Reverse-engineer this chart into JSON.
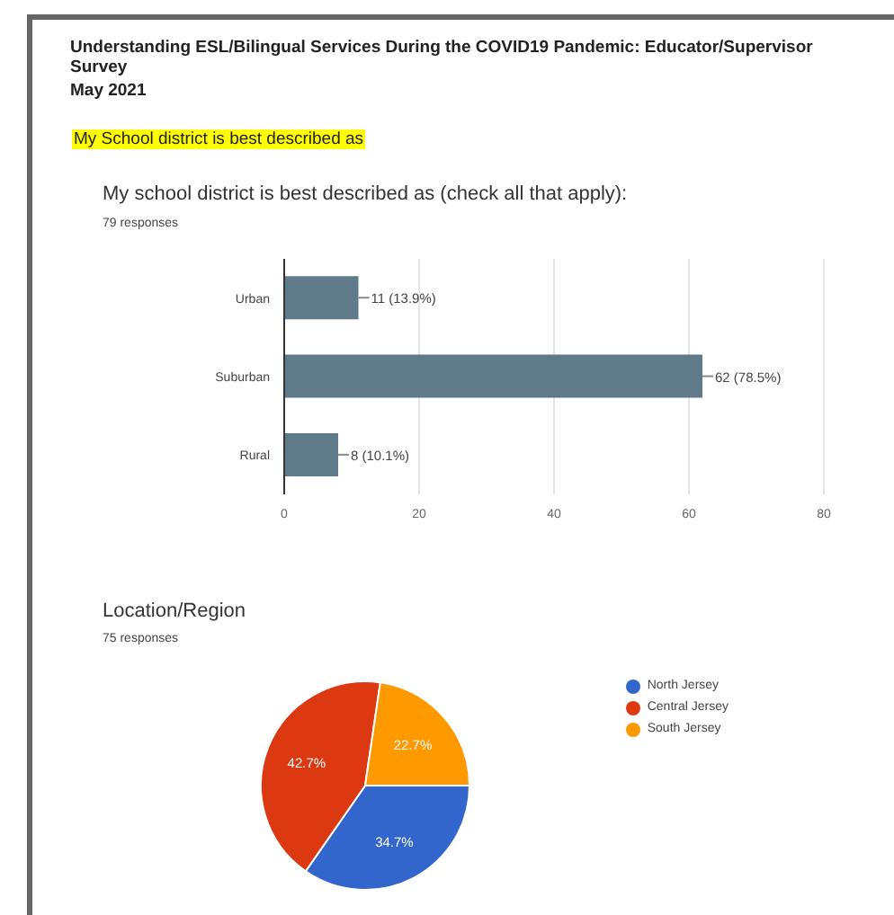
{
  "chart_data": [
    {
      "type": "bar",
      "orientation": "horizontal",
      "title": "My school district is best described as (check all that apply):",
      "subtitle": "79 responses",
      "annotations": [
        "Understanding ESL/Bilingual Services During the COVID19 Pandemic: Educator/Supervisor Survey",
        "May 2021",
        "My School district is best described as"
      ],
      "categories": [
        "Urban",
        "Suburban",
        "Rural"
      ],
      "values": [
        11,
        62,
        8
      ],
      "value_labels": [
        "11 (13.9%)",
        "62 (78.5%)",
        "8 (10.1%)"
      ],
      "color": "#5f7b89",
      "xlim": [
        0,
        80
      ],
      "xticks": [
        0,
        20,
        40,
        60,
        80
      ],
      "grid": "x"
    },
    {
      "type": "pie",
      "title": "Location/Region",
      "subtitle": "75 responses",
      "categories": [
        "North Jersey",
        "Central Jersey",
        "South Jersey"
      ],
      "values": [
        34.7,
        42.7,
        22.7
      ],
      "colors": [
        "#3366cc",
        "#dc3912",
        "#ff9900"
      ],
      "value_labels": [
        "34.7%",
        "42.7%",
        "22.7%"
      ],
      "legend": "right"
    }
  ]
}
